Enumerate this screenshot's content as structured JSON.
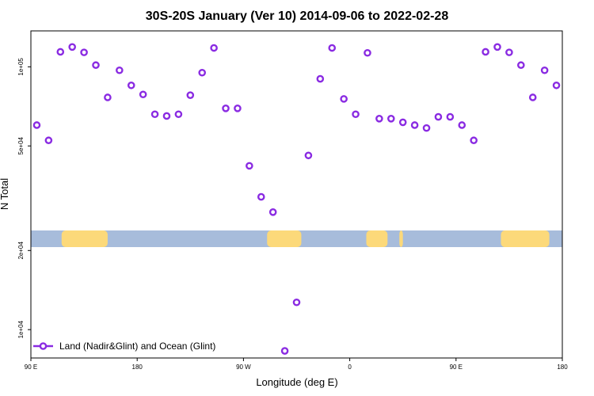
{
  "chart_data": {
    "type": "scatter",
    "title": "30S-20S January (Ver 10)   2014-09-06 to 2022-02-28",
    "xlabel": "Longitude (deg E)",
    "ylabel": "N Total",
    "y_scale": "log",
    "xlim": [
      90,
      540
    ],
    "ylim": [
      7800,
      137000
    ],
    "x_ticks": [
      {
        "value": 90,
        "label": "90 E"
      },
      {
        "value": 180,
        "label": "180"
      },
      {
        "value": 270,
        "label": "90 W"
      },
      {
        "value": 360,
        "label": "0"
      },
      {
        "value": 450,
        "label": "90 E"
      },
      {
        "value": 540,
        "label": "180"
      }
    ],
    "y_ticks": [
      {
        "value": 10000,
        "label": "1e+04"
      },
      {
        "value": 20000,
        "label": "2e+04"
      },
      {
        "value": 50000,
        "label": "5e+04"
      },
      {
        "value": 100000,
        "label": "1e+05"
      }
    ],
    "band_color_ocean": "#a7bcdb",
    "band_color_land": "#fcd97a",
    "land_segments": [
      [
        116,
        155
      ],
      [
        290,
        319
      ],
      [
        374,
        392
      ],
      [
        402,
        405
      ],
      [
        488,
        529
      ]
    ],
    "series": [
      {
        "name": "Land (Nadir&Glint) and Ocean (Glint)",
        "color": "#8a2be2",
        "points": [
          [
            95,
            60000
          ],
          [
            105,
            52500
          ],
          [
            115,
            114000
          ],
          [
            125,
            119000
          ],
          [
            135,
            113500
          ],
          [
            145,
            101500
          ],
          [
            155,
            76500
          ],
          [
            165,
            97000
          ],
          [
            175,
            85000
          ],
          [
            185,
            78500
          ],
          [
            195,
            66000
          ],
          [
            205,
            65000
          ],
          [
            215,
            66000
          ],
          [
            225,
            78000
          ],
          [
            235,
            95000
          ],
          [
            245,
            118000
          ],
          [
            255,
            69500
          ],
          [
            265,
            69500
          ],
          [
            275,
            42000
          ],
          [
            285,
            32000
          ],
          [
            295,
            28000
          ],
          [
            305,
            8300
          ],
          [
            315,
            12700
          ],
          [
            325,
            46000
          ],
          [
            335,
            90000
          ],
          [
            345,
            118000
          ],
          [
            355,
            75500
          ],
          [
            365,
            66000
          ],
          [
            375,
            113000
          ],
          [
            385,
            63500
          ],
          [
            395,
            63500
          ],
          [
            405,
            61500
          ],
          [
            415,
            60000
          ],
          [
            425,
            58500
          ],
          [
            435,
            64500
          ],
          [
            445,
            64500
          ],
          [
            455,
            60000
          ],
          [
            465,
            52500
          ],
          [
            475,
            114000
          ],
          [
            485,
            119000
          ],
          [
            495,
            113500
          ],
          [
            505,
            101500
          ],
          [
            515,
            76500
          ],
          [
            525,
            97000
          ],
          [
            535,
            85000
          ]
        ]
      }
    ]
  }
}
